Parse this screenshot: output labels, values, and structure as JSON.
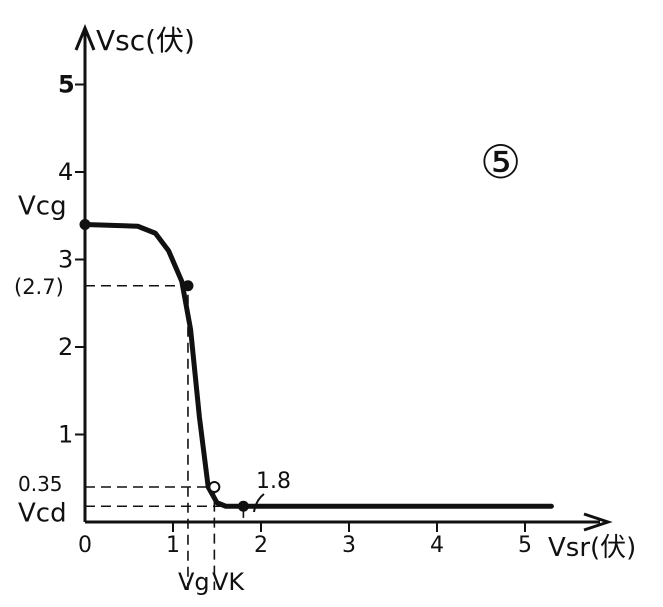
{
  "chart_data": {
    "type": "line",
    "ylabel": "Vsc(伏)",
    "xlabel": "Vsr(伏)",
    "badge": "⑤",
    "xlim": [
      0,
      5.5
    ],
    "ylim": [
      0,
      5.5
    ],
    "x_ticks": [
      "0",
      "1",
      "2",
      "3",
      "4",
      "5"
    ],
    "y_ticks": [
      "1",
      "2",
      "3",
      "4",
      "5"
    ],
    "series": [
      {
        "points": [
          {
            "x": 0,
            "y": 3.4
          },
          {
            "x": 0.6,
            "y": 3.38
          },
          {
            "x": 0.8,
            "y": 3.3
          },
          {
            "x": 0.95,
            "y": 3.1
          },
          {
            "x": 1.1,
            "y": 2.75
          },
          {
            "x": 1.2,
            "y": 2.2
          },
          {
            "x": 1.3,
            "y": 1.2
          },
          {
            "x": 1.4,
            "y": 0.4
          },
          {
            "x": 1.5,
            "y": 0.22
          },
          {
            "x": 1.6,
            "y": 0.18
          },
          {
            "x": 1.8,
            "y": 0.18
          },
          {
            "x": 3.0,
            "y": 0.18
          },
          {
            "x": 4.0,
            "y": 0.18
          },
          {
            "x": 5.3,
            "y": 0.18
          }
        ]
      }
    ],
    "annotations": {
      "vcg": {
        "label": "Vcg",
        "y": 3.4
      },
      "knee_y": {
        "label": "(2.7)",
        "x": 1.17,
        "y": 2.7
      },
      "vk_y": {
        "label": "0.35",
        "x": 1.47,
        "y": 0.4
      },
      "vcd": {
        "label": "Vcd",
        "y": 0.18
      },
      "point_18": {
        "label": "1.8",
        "x": 1.8,
        "y": 0.18
      },
      "vg": {
        "label": "Vg",
        "x": 1.17
      },
      "vk": {
        "label": "VK",
        "x": 1.47
      }
    }
  }
}
